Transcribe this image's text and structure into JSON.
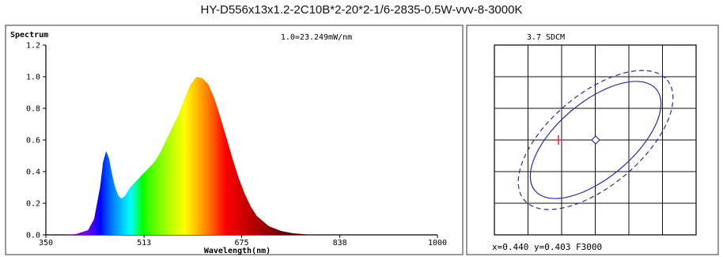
{
  "title": "HY-D556x13x1.2-2C10B*2-20*2-1/6-2835-0.5W-vvv-8-3000K",
  "chart_data": [
    {
      "type": "area",
      "title": "1.0=23.249mW/nm",
      "ylabel": "Spectrum",
      "xlabel": "Wavelength(nm)",
      "ylim": [
        0,
        1.2
      ],
      "y_ticks": [
        "0.0",
        "0.2",
        "0.4",
        "0.6",
        "0.8",
        "1.0",
        "1.2"
      ],
      "x_ticks": [
        "350",
        "513",
        "675",
        "838",
        "1000"
      ],
      "x_tick_values": [
        350,
        513,
        675,
        838,
        1000
      ],
      "xlim": [
        350,
        1000
      ],
      "grid": false,
      "fill": "spectral",
      "x": [
        380,
        400,
        420,
        430,
        440,
        445,
        450,
        455,
        460,
        465,
        470,
        475,
        480,
        485,
        490,
        500,
        510,
        520,
        530,
        540,
        550,
        560,
        570,
        580,
        590,
        600,
        610,
        620,
        630,
        640,
        650,
        660,
        670,
        680,
        690,
        700,
        720,
        740,
        760,
        780,
        800
      ],
      "values": [
        0.0,
        0.005,
        0.03,
        0.1,
        0.3,
        0.46,
        0.53,
        0.48,
        0.38,
        0.3,
        0.25,
        0.23,
        0.24,
        0.27,
        0.3,
        0.34,
        0.38,
        0.42,
        0.46,
        0.52,
        0.6,
        0.68,
        0.76,
        0.86,
        0.95,
        1.0,
        0.99,
        0.95,
        0.86,
        0.74,
        0.61,
        0.48,
        0.36,
        0.26,
        0.18,
        0.12,
        0.055,
        0.025,
        0.01,
        0.004,
        0.0
      ]
    },
    {
      "type": "scatter",
      "title": "3.7 SDCM",
      "readout": "x=0.440 y=0.403 F3000",
      "grid": true,
      "center": {
        "x": 0.44,
        "y": 0.403
      },
      "marker": "cross",
      "ellipses": [
        "solid",
        "dashed"
      ]
    }
  ],
  "icons": {
    "center_marker": "diamond-icon",
    "measurement_marker": "plus-icon"
  }
}
